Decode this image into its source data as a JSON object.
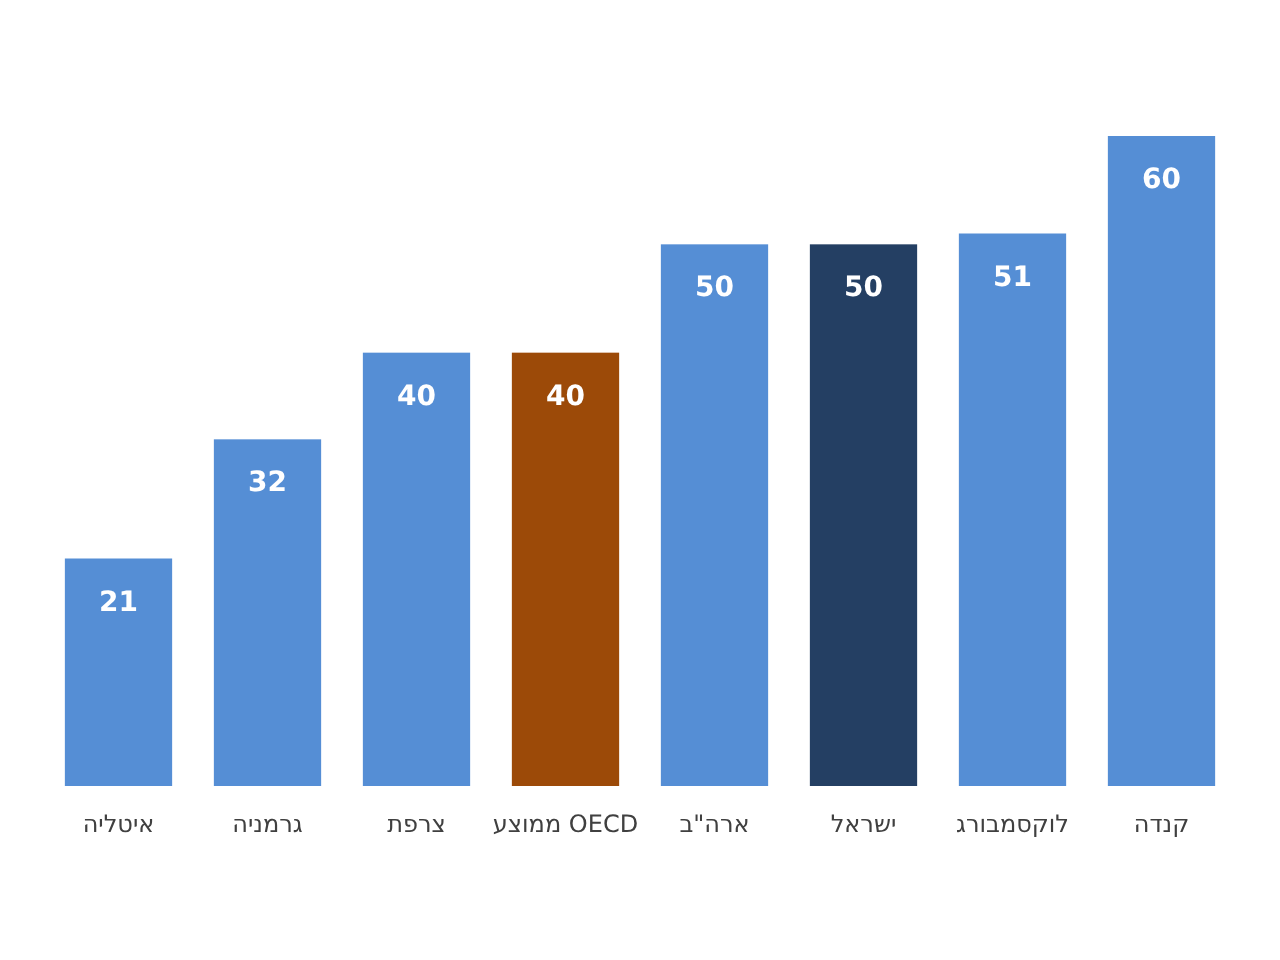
{
  "chart_data": {
    "type": "bar",
    "categories": [
      "איטליה",
      "גרמניה",
      "צרפת",
      "ממוצע OECD",
      "ארה\"ב",
      "ישראל",
      "לוקסמבורג",
      "קנדה"
    ],
    "values": [
      21,
      32,
      40,
      40,
      50,
      50,
      51,
      60
    ],
    "colors": [
      "#558ed5",
      "#558ed5",
      "#558ed5",
      "#9c4a08",
      "#558ed5",
      "#243f63",
      "#558ed5",
      "#558ed5"
    ],
    "data_labels": true
  }
}
